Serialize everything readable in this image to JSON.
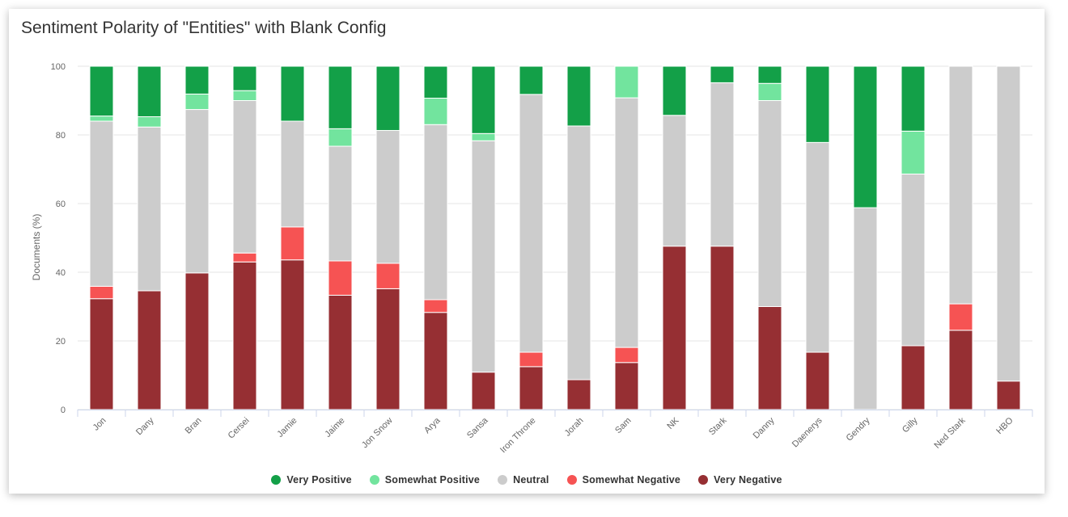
{
  "chart_data": {
    "type": "bar",
    "stacked": true,
    "title": "Sentiment Polarity of \"Entities\" with Blank Config",
    "ylabel": "Documents (%)",
    "xlabel": "",
    "ylim": [
      0,
      100
    ],
    "yticks": [
      0,
      20,
      40,
      60,
      80,
      100
    ],
    "grid": true,
    "legend_position": "bottom",
    "categories": [
      "Jon",
      "Dany",
      "Bran",
      "Cersei",
      "Jamie",
      "Jaime",
      "Jon Snow",
      "Arya",
      "Sansa",
      "Iron Throne",
      "Jorah",
      "Sam",
      "NK",
      "Stark",
      "Danny",
      "Daenerys",
      "Gendry",
      "Gilly",
      "Ned Stark",
      "HBO"
    ],
    "series": [
      {
        "name": "Very Negative",
        "color": "#962f33",
        "values": [
          32.3,
          34.6,
          39.8,
          43.0,
          43.6,
          33.3,
          35.2,
          28.3,
          10.9,
          12.5,
          8.7,
          13.7,
          47.6,
          47.6,
          30.0,
          16.7,
          0,
          18.6,
          23.1,
          8.3
        ]
      },
      {
        "name": "Somewhat Negative",
        "color": "#f65353",
        "values": [
          3.6,
          0,
          0,
          2.6,
          9.6,
          10.0,
          7.4,
          3.7,
          0,
          4.2,
          0,
          4.4,
          0,
          0,
          0,
          0,
          0,
          0,
          7.7,
          0
        ]
      },
      {
        "name": "Neutral",
        "color": "#cccccc",
        "values": [
          48.1,
          47.7,
          47.6,
          44.4,
          30.8,
          33.4,
          38.7,
          51.0,
          67.4,
          75.1,
          73.9,
          72.7,
          38.1,
          47.6,
          60.0,
          61.1,
          58.8,
          50.0,
          69.2,
          91.7
        ]
      },
      {
        "name": "Somewhat Positive",
        "color": "#72e49e",
        "values": [
          1.5,
          3.0,
          4.5,
          2.9,
          0,
          5.1,
          0,
          7.7,
          2.1,
          0,
          0,
          9.2,
          0,
          0,
          5.0,
          0,
          0,
          12.5,
          0,
          0
        ]
      },
      {
        "name": "Very Positive",
        "color": "#13a048",
        "values": [
          14.5,
          14.7,
          8.1,
          7.1,
          16.0,
          18.2,
          18.7,
          9.3,
          19.6,
          8.2,
          17.4,
          0,
          14.3,
          4.8,
          5.0,
          22.2,
          41.2,
          18.9,
          0,
          0
        ]
      }
    ]
  }
}
